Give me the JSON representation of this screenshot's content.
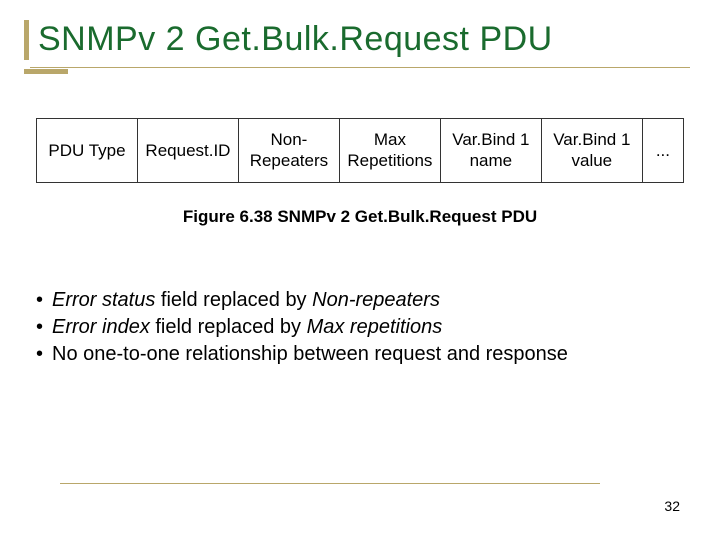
{
  "colors": {
    "title": "#1a6b2e",
    "accent": "#b9a76a",
    "text": "#000000",
    "border": "#333333",
    "background": "#ffffff"
  },
  "title": "SNMPv 2 Get.Bulk.Request PDU",
  "diagram": {
    "cells": [
      "PDU Type",
      "Request.ID",
      "Non-Repeaters",
      "Max Repetitions",
      "Var.Bind 1 name",
      "Var.Bind 1 value",
      "..."
    ]
  },
  "caption": "Figure 6.38 SNMPv 2 Get.Bulk.Request PDU",
  "bullets": [
    {
      "plain_pre": "",
      "italic1": "Error status",
      "mid": " field replaced by ",
      "italic2": "Non-repeaters",
      "post": ""
    },
    {
      "plain_pre": "",
      "italic1": "Error index",
      "mid": " field replaced by ",
      "italic2": "Max repetitions",
      "post": ""
    },
    {
      "plain_pre": "No one-to-one relationship between request and response",
      "italic1": "",
      "mid": "",
      "italic2": "",
      "post": ""
    }
  ],
  "page_number": "32"
}
